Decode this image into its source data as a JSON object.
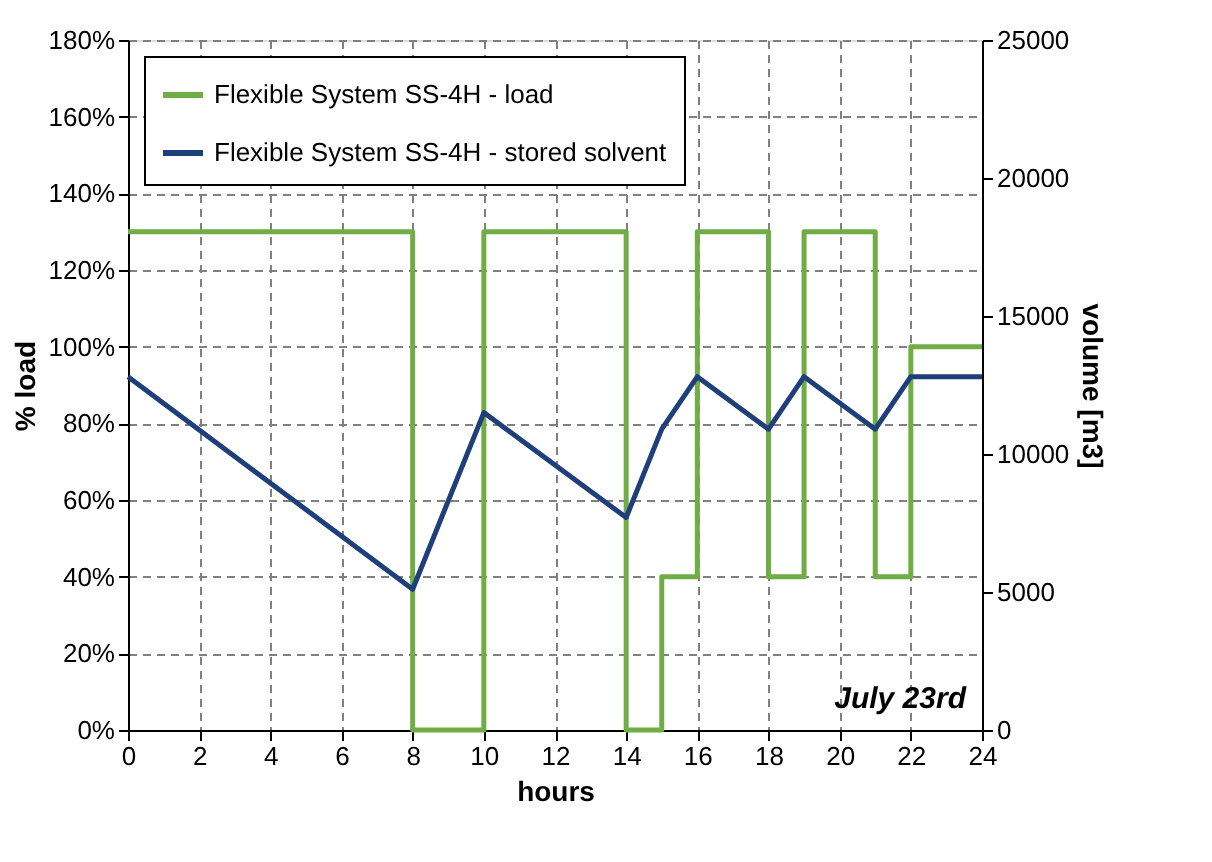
{
  "chart_data": {
    "type": "line",
    "xlabel": "hours",
    "ylabel": "% load",
    "y2label": "volume [m3]",
    "xlim": [
      0,
      24
    ],
    "xticks": [
      0,
      2,
      4,
      6,
      8,
      10,
      12,
      14,
      16,
      18,
      20,
      22,
      24
    ],
    "ylim": [
      0,
      180
    ],
    "yticks": [
      {
        "value": 0,
        "label": "0%"
      },
      {
        "value": 20,
        "label": "20%"
      },
      {
        "value": 40,
        "label": "40%"
      },
      {
        "value": 60,
        "label": "60%"
      },
      {
        "value": 80,
        "label": "80%"
      },
      {
        "value": 100,
        "label": "100%"
      },
      {
        "value": 120,
        "label": "120%"
      },
      {
        "value": 140,
        "label": "140%"
      },
      {
        "value": 160,
        "label": "160%"
      },
      {
        "value": 180,
        "label": "180%"
      }
    ],
    "y2lim": [
      0,
      25000
    ],
    "y2ticks": [
      0,
      5000,
      10000,
      15000,
      20000,
      25000
    ],
    "series": [
      {
        "name": "Flexible System SS-4H - load",
        "type": "step",
        "color": "#70ad47",
        "x": [
          0,
          8,
          10,
          14,
          15,
          16,
          18,
          19,
          21,
          22,
          24
        ],
        "values": [
          130,
          0,
          130,
          0,
          40,
          130,
          40,
          130,
          40,
          100,
          100
        ]
      },
      {
        "name": "Flexible System SS-4H - stored solvent",
        "type": "line",
        "axis": "y2",
        "color": "#1f3f7a",
        "x": [
          0,
          8,
          10,
          14,
          15,
          16,
          18,
          19,
          21,
          22,
          24
        ],
        "values": [
          12800,
          5100,
          11500,
          7700,
          10900,
          12800,
          10900,
          12800,
          10900,
          12800,
          12800
        ]
      }
    ],
    "annotations": [
      "July 23rd"
    ],
    "grid": true,
    "legend": "top left",
    "line_style": "solid",
    "marker": "none"
  }
}
